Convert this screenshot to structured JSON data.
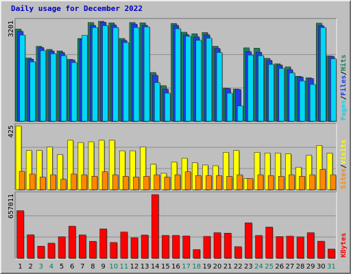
{
  "chart_data": {
    "type": "bar",
    "title": "Daily usage for December 2022",
    "days": [
      "1",
      "2",
      "3",
      "4",
      "5",
      "6",
      "7",
      "8",
      "9",
      "10",
      "11",
      "12",
      "13",
      "14",
      "15",
      "16",
      "17",
      "18",
      "19",
      "20",
      "21",
      "22",
      "23",
      "24",
      "25",
      "26",
      "27",
      "28",
      "29",
      "30",
      "31"
    ],
    "weekend_days": [
      "3",
      "4",
      "10",
      "11",
      "17",
      "18",
      "24",
      "25",
      "31"
    ],
    "panels": [
      {
        "id": "hits",
        "ymax": 3201,
        "ymax_label": "3201",
        "legend": [
          "Pages",
          "Files",
          "Hits"
        ],
        "series": [
          {
            "name": "Hits",
            "color": "#1a7f5a",
            "values": [
              2950,
              2025,
              2400,
              2300,
              2250,
              1980,
              2650,
              3160,
              3200,
              3150,
              2650,
              3160,
              3150,
              1560,
              1140,
              3130,
              2850,
              2800,
              2840,
              2400,
              1060,
              1030,
              2350,
              2340,
              2015,
              1840,
              1740,
              1440,
              1390,
              3140,
              2090
            ]
          },
          {
            "name": "Files",
            "color": "#1e3ee6",
            "values": [
              2880,
              1990,
              2360,
              2250,
              2200,
              1960,
              2630,
              3070,
              3170,
              3080,
              2590,
              3110,
              3070,
              1470,
              1030,
              3070,
              2770,
              2700,
              2770,
              2330,
              1050,
              1020,
              2230,
              2210,
              1950,
              1800,
              1650,
              1420,
              1370,
              3060,
              2080
            ]
          },
          {
            "name": "Pages",
            "color": "#00d8f8",
            "values": [
              2760,
              1900,
              2260,
              2160,
              2100,
              1880,
              2750,
              3000,
              3060,
              3000,
              2520,
              3000,
              3020,
              1240,
              900,
              2960,
              2720,
              2590,
              2660,
              2200,
              900,
              490,
              2120,
              2100,
              1820,
              1690,
              1550,
              1290,
              1180,
              3000,
              2000
            ]
          }
        ]
      },
      {
        "id": "visits",
        "ymax": 425,
        "ymax_label": "425",
        "legend": [
          "Sites",
          "Visits"
        ],
        "series": [
          {
            "name": "Visits",
            "color": "#ffff00",
            "values": [
              425,
              262,
              262,
              285,
              235,
              330,
              315,
              320,
              330,
              330,
              260,
              260,
              285,
              170,
              110,
              185,
              210,
              180,
              165,
              160,
              250,
              262,
              75,
              250,
              245,
              245,
              240,
              150,
              230,
              295,
              245
            ]
          },
          {
            "name": "Sites",
            "color": "#ff8800",
            "values": [
              123,
              105,
              85,
              100,
              70,
              105,
              100,
              90,
              120,
              100,
              90,
              85,
              90,
              100,
              85,
              100,
              120,
              95,
              95,
              95,
              90,
              100,
              75,
              100,
              95,
              90,
              100,
              90,
              100,
              135,
              100
            ]
          }
        ]
      },
      {
        "id": "kbytes",
        "ymax": 657011,
        "ymax_label": "657011",
        "legend": [
          "KBytes"
        ],
        "series": [
          {
            "name": "KBytes",
            "color": "#ff0000",
            "values": [
              491000,
              242000,
              125000,
              156000,
              222000,
              331000,
              241000,
              175000,
              303000,
              163000,
              271000,
              212000,
              240000,
              657011,
              236000,
              236000,
              230000,
              90000,
              226000,
              264000,
              259000,
              120000,
              366000,
              235000,
              322000,
              224000,
              228000,
              221000,
              264000,
              176000,
              95000
            ]
          }
        ]
      }
    ],
    "colors": {
      "background": "#bfbfbf",
      "plot_background": "#bfbfbf",
      "title": "#0000c0",
      "weekday_label": "#000000",
      "weekend_label": "#00805a",
      "grid": "#8c8c8c"
    }
  }
}
